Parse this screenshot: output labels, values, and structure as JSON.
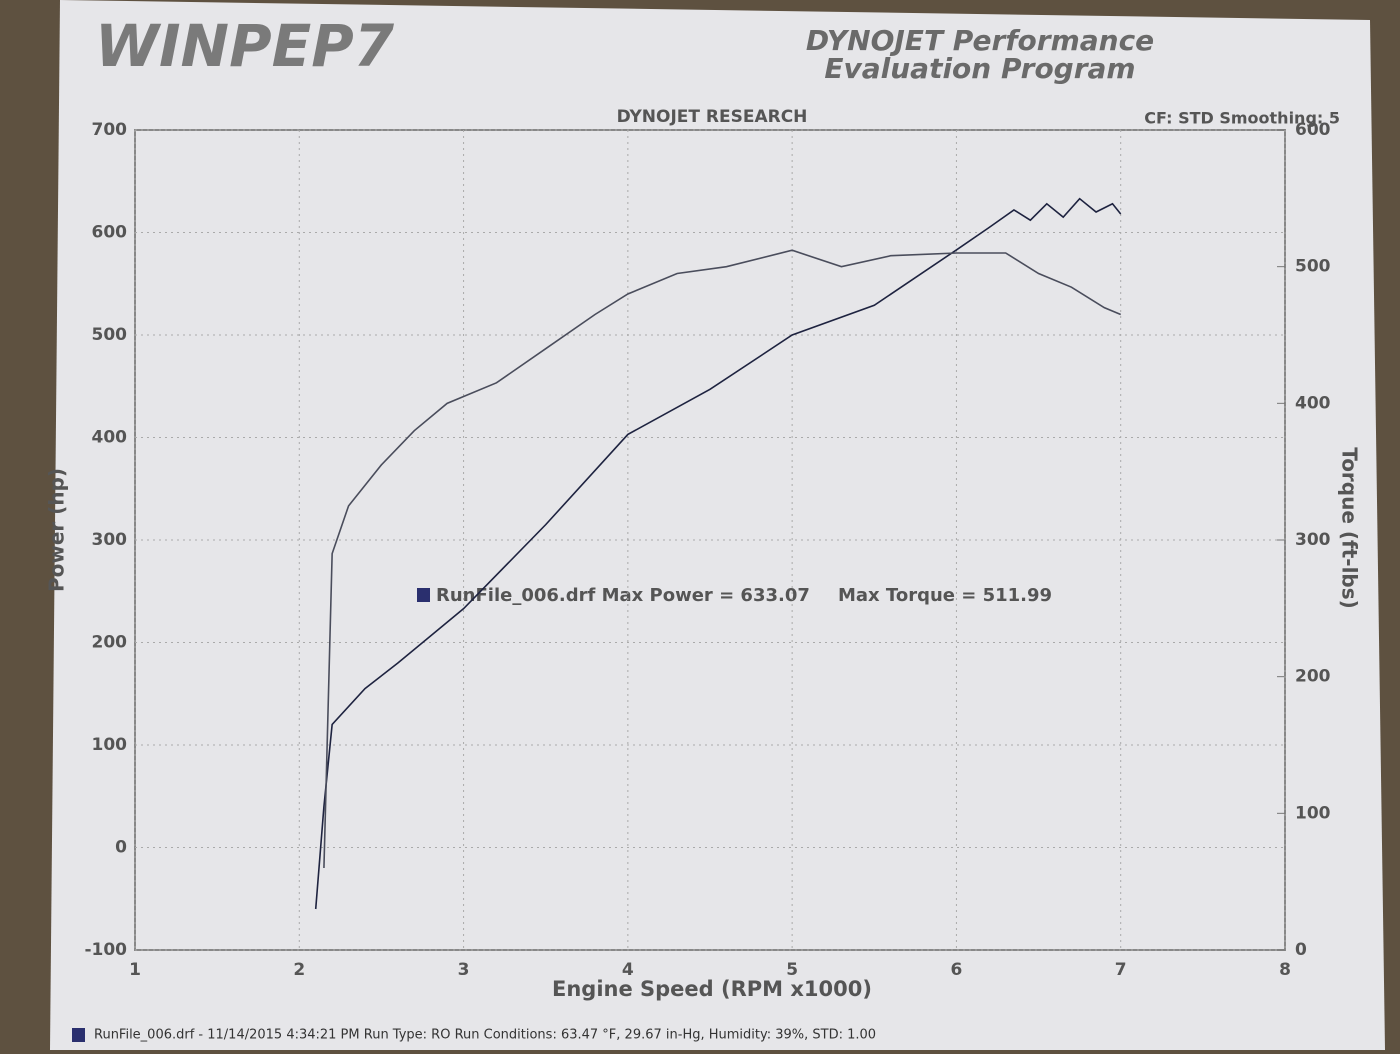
{
  "chart_data": {
    "type": "line",
    "logo": "WINPEP7",
    "header_line1": "DYNOJET Performance",
    "header_line2": "Evaluation Program",
    "title": "DYNOJET RESEARCH",
    "settings_text": "CF: STD  Smoothing: 5",
    "xlabel": "Engine Speed (RPM x1000)",
    "ylabel": "Power (hp)",
    "y2label": "Torque (ft-lbs)",
    "legend_text": "RunFile_006.drf Max Power = 633.07",
    "max_torque_text": "Max Torque = 511.99",
    "footer": "RunFile_006.drf - 11/14/2015 4:34:21 PM  Run Type: RO  Run Conditions: 63.47 °F, 29.67 in-Hg,  Humidity:  39%, STD: 1.00",
    "xlim": [
      1,
      8
    ],
    "xticks": [
      1,
      2,
      3,
      4,
      5,
      6,
      7,
      8
    ],
    "ylim": [
      -100,
      700
    ],
    "yticks": [
      -100,
      0,
      100,
      200,
      300,
      400,
      500,
      600,
      700
    ],
    "y2lim": [
      0,
      600
    ],
    "y2ticks": [
      0,
      100,
      200,
      300,
      400,
      500,
      600
    ],
    "grid": true,
    "series": [
      {
        "color": "#1e2340",
        "x": [
          2.1,
          2.15,
          2.2,
          2.4,
          2.6,
          3.0,
          3.5,
          4.0,
          4.5,
          5.0,
          5.5,
          6.0,
          6.2,
          6.35,
          6.45,
          6.55,
          6.65,
          6.75,
          6.85,
          6.95,
          7.0
        ],
        "values": [
          -60,
          40,
          120,
          155,
          180,
          233,
          315,
          403,
          447,
          500,
          529,
          583,
          605,
          622,
          612,
          628,
          615,
          633,
          620,
          628,
          618
        ]
      },
      {
        "color": "#4a4d5c",
        "axis": "y2",
        "x": [
          2.15,
          2.2,
          2.3,
          2.5,
          2.7,
          2.9,
          3.2,
          3.5,
          3.8,
          4.0,
          4.3,
          4.6,
          5.0,
          5.3,
          5.6,
          6.0,
          6.3,
          6.5,
          6.7,
          6.9,
          7.0
        ],
        "values": [
          60,
          290,
          325,
          355,
          380,
          400,
          415,
          440,
          465,
          480,
          495,
          500,
          512,
          500,
          508,
          510,
          510,
          495,
          485,
          470,
          465
        ]
      }
    ]
  }
}
